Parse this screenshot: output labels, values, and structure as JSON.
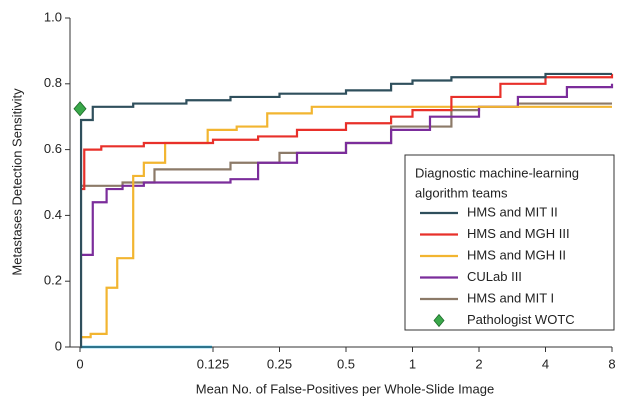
{
  "chart_data": {
    "type": "line",
    "drawstyle": "steps-post",
    "xlabel": "Mean No. of False-Positives per Whole-Slide Image",
    "ylabel": "Metastases Detection Sensitivity",
    "xscale": "log",
    "linthresh": 0.125,
    "xlim": [
      0,
      8
    ],
    "xticks": [
      0,
      0.125,
      0.25,
      0.5,
      1,
      2,
      4,
      8
    ],
    "ylim": [
      0,
      1
    ],
    "yticks": [
      0,
      0.2,
      0.4,
      0.6,
      0.8,
      {
        "value": 1,
        "label": "1.0"
      }
    ],
    "legend_title": [
      "Diagnostic machine-learning",
      "algorithm teams"
    ],
    "legend_loc": "lower right",
    "series": [
      {
        "name": "HMS and MIT II",
        "color": "#2f4f5c",
        "x": [
          0,
          0.001,
          0.012,
          0.05,
          0.1,
          0.15,
          0.25,
          0.5,
          0.8,
          1,
          1.5,
          4,
          8
        ],
        "values": [
          0,
          0.69,
          0.73,
          0.74,
          0.75,
          0.76,
          0.77,
          0.78,
          0.8,
          0.81,
          0.82,
          0.83,
          0.83
        ]
      },
      {
        "name": "HMS and MGH III",
        "color": "#e8302a",
        "x": [
          0,
          0.004,
          0.02,
          0.06,
          0.125,
          0.2,
          0.3,
          0.5,
          0.8,
          1,
          1.5,
          2.5,
          4,
          8
        ],
        "values": [
          0.48,
          0.6,
          0.61,
          0.62,
          0.63,
          0.64,
          0.66,
          0.68,
          0.7,
          0.72,
          0.76,
          0.8,
          0.82,
          0.83
        ]
      },
      {
        "name": "HMS and MGH II",
        "color": "#f2b530",
        "x": [
          0,
          0.01,
          0.025,
          0.035,
          0.05,
          0.06,
          0.08,
          0.12,
          0.16,
          0.22,
          0.35,
          8
        ],
        "values": [
          0.03,
          0.04,
          0.18,
          0.27,
          0.52,
          0.56,
          0.62,
          0.66,
          0.67,
          0.71,
          0.73,
          0.73
        ]
      },
      {
        "name": "CULab III",
        "color": "#7b2d9b",
        "x": [
          0,
          0.012,
          0.025,
          0.04,
          0.06,
          0.15,
          0.2,
          0.3,
          0.5,
          0.8,
          1.2,
          2,
          3,
          5,
          8
        ],
        "values": [
          0.28,
          0.44,
          0.48,
          0.49,
          0.5,
          0.51,
          0.56,
          0.59,
          0.62,
          0.66,
          0.7,
          0.73,
          0.76,
          0.79,
          0.8
        ]
      },
      {
        "name": "HMS and MIT I",
        "color": "#8c7a68",
        "x": [
          0,
          0.04,
          0.07,
          0.15,
          0.25,
          0.5,
          0.8,
          1.5,
          2,
          3,
          8
        ],
        "values": [
          0.49,
          0.5,
          0.54,
          0.56,
          0.59,
          0.62,
          0.67,
          0.72,
          0.73,
          0.74,
          0.74
        ]
      },
      {
        "name": "Pathologist WOTC",
        "color": "#3aa84a",
        "marker": "diamond",
        "x": [
          0
        ],
        "values": [
          0.724
        ]
      }
    ]
  }
}
